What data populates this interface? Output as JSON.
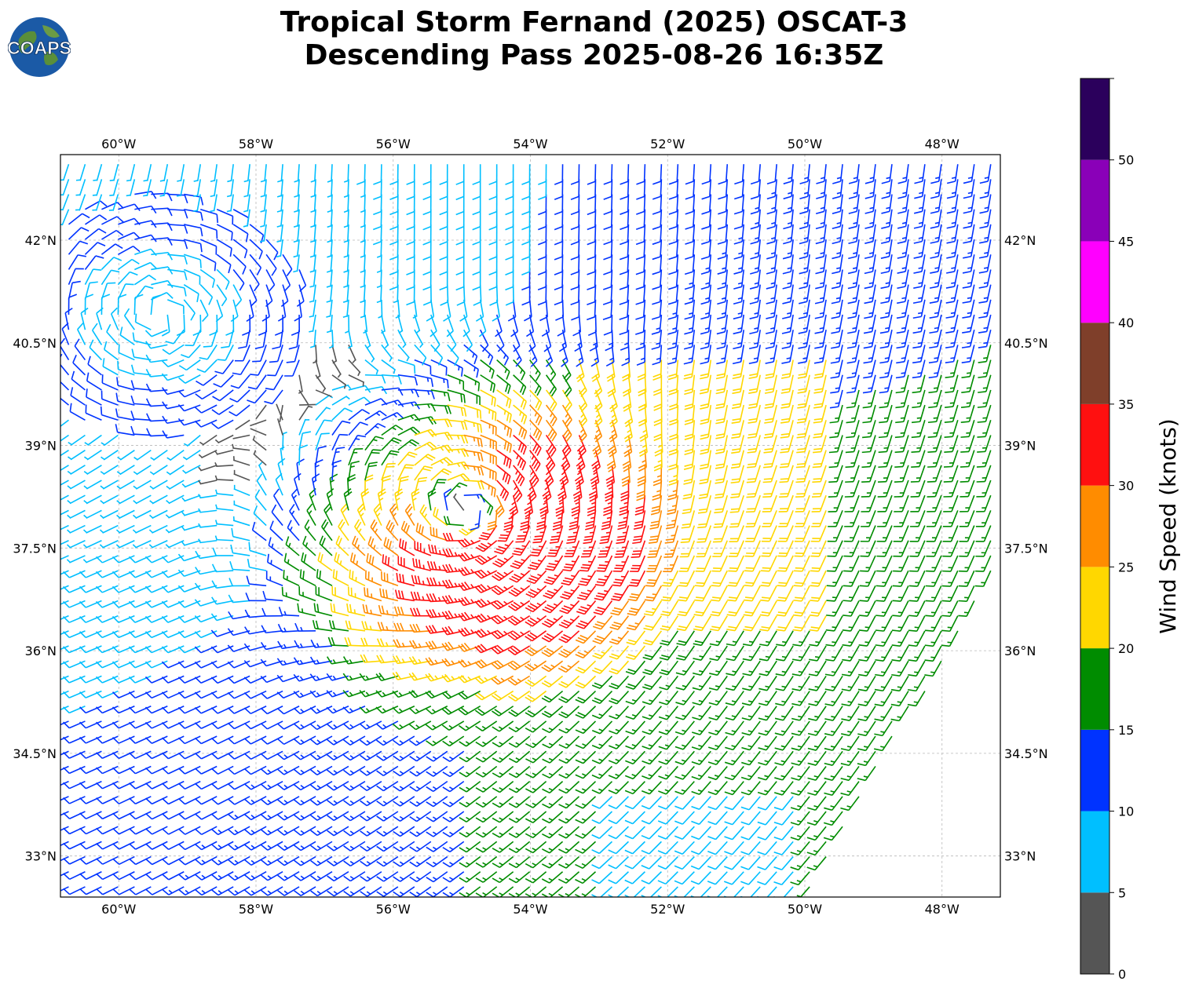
{
  "header": {
    "title_line1": "Tropical Storm Fernand (2025) OSCAT-3",
    "title_line2": "Descending Pass 2025-08-26 16:35Z",
    "logo_text": "COAPS"
  },
  "chart_data": {
    "type": "wind-barbs",
    "title": "Tropical Storm Fernand (2025) OSCAT-3 Descending Pass 2025-08-26 16:35Z",
    "xlim": [
      -60.85,
      -47.15
    ],
    "ylim": [
      32.4,
      43.25
    ],
    "x_ticks": [
      {
        "value": -60,
        "label": "60°W"
      },
      {
        "value": -58,
        "label": "58°W"
      },
      {
        "value": -56,
        "label": "56°W"
      },
      {
        "value": -54,
        "label": "54°W"
      },
      {
        "value": -52,
        "label": "52°W"
      },
      {
        "value": -50,
        "label": "50°W"
      },
      {
        "value": -48,
        "label": "48°W"
      }
    ],
    "y_ticks": [
      {
        "value": 42,
        "label": "42°N"
      },
      {
        "value": 40.5,
        "label": "40.5°N"
      },
      {
        "value": 39,
        "label": "39°N"
      },
      {
        "value": 37.5,
        "label": "37.5°N"
      },
      {
        "value": 36,
        "label": "36°N"
      },
      {
        "value": 34.5,
        "label": "34.5°N"
      },
      {
        "value": 33,
        "label": "33°N"
      }
    ],
    "grid": true,
    "storm_center": {
      "lon": -54.8,
      "lat": 38.0
    },
    "max_wind_knots": 33,
    "swath_edge": [
      [
        -56.5,
        32.4
      ],
      [
        -50.0,
        32.4
      ],
      [
        -47.15,
        37.3
      ],
      [
        -47.15,
        43.25
      ],
      [
        -60.85,
        43.25
      ],
      [
        -60.85,
        32.4
      ]
    ],
    "colorbar": {
      "label": "Wind Speed (knots)",
      "bins": [
        {
          "min": 0,
          "max": 5,
          "color": "#555555"
        },
        {
          "min": 5,
          "max": 10,
          "color": "#00bfff"
        },
        {
          "min": 10,
          "max": 15,
          "color": "#0033ff"
        },
        {
          "min": 15,
          "max": 20,
          "color": "#008c00"
        },
        {
          "min": 20,
          "max": 25,
          "color": "#ffd700"
        },
        {
          "min": 25,
          "max": 30,
          "color": "#ff8c00"
        },
        {
          "min": 30,
          "max": 35,
          "color": "#ff1010"
        },
        {
          "min": 35,
          "max": 40,
          "color": "#7f3f2a"
        },
        {
          "min": 40,
          "max": 45,
          "color": "#ff00ff"
        },
        {
          "min": 45,
          "max": 50,
          "color": "#8a00b8"
        },
        {
          "min": 50,
          "max": 55,
          "color": "#2b005c"
        }
      ],
      "tick_labels": [
        "0",
        "5",
        "10",
        "15",
        "20",
        "25",
        "30",
        "35",
        "40",
        "45",
        "50"
      ]
    }
  }
}
